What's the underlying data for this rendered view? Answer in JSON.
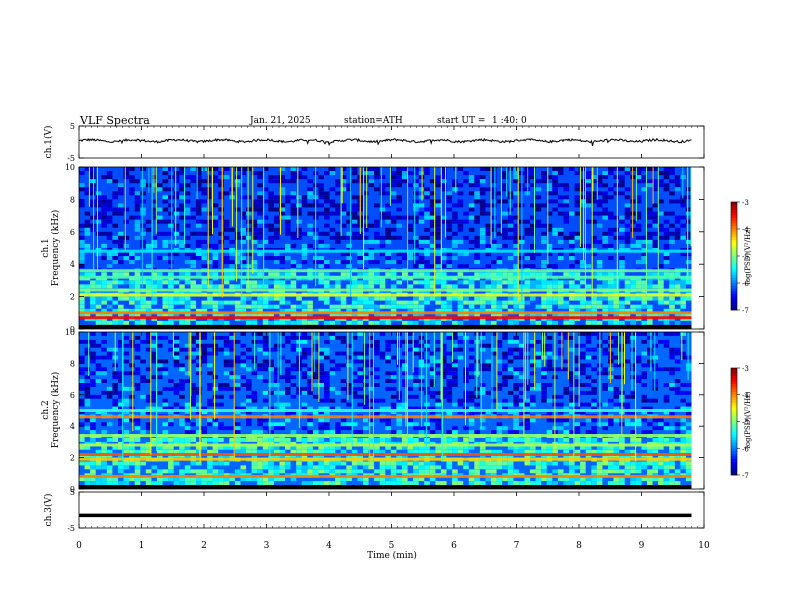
{
  "header": {
    "title": "VLF Spectra",
    "date": "Jan. 21, 2025",
    "station": "station=ATH",
    "start_label": "start UT =",
    "start_time": "1 :40: 0"
  },
  "colors": {
    "spectrum_background": "#0a3fc8",
    "trace": "#000000"
  },
  "chart_data": [
    {
      "type": "line",
      "panel": "ch1",
      "ylabel": "ch.1(V)",
      "ylim": [
        -5,
        5
      ],
      "yticks": [
        "5",
        "-5"
      ],
      "xlim": [
        0,
        10
      ],
      "x_end": 9.8,
      "baseline": 0.4,
      "description_of_signal": "noisy trace around baseline with small spikes"
    },
    {
      "type": "heatmap",
      "panel": "ch1-spectrogram",
      "ylabel_top": "ch.1",
      "ylabel": "Frequency (kHz)",
      "ylim": [
        0,
        10
      ],
      "yticks": [
        "0",
        "2",
        "4",
        "6",
        "8",
        "10"
      ],
      "xlim": [
        0,
        10
      ],
      "x_end": 9.8,
      "colorbar": {
        "label": "log(PSD)(V²/Hz)",
        "range": [
          -7,
          -3
        ],
        "ticks": [
          "-3",
          "-4",
          "-5",
          "-6",
          "-7"
        ]
      },
      "bands": [
        {
          "freq": 0.7,
          "level": -3.5
        },
        {
          "freq": 1.0,
          "level": -4.0
        },
        {
          "freq": 2.1,
          "level": -4.6
        },
        {
          "freq": 2.4,
          "level": -5.0
        },
        {
          "freq": 3.2,
          "level": -5.2
        },
        {
          "freq": 3.6,
          "level": -5.1
        },
        {
          "freq": 4.8,
          "level": -5.6
        }
      ]
    },
    {
      "type": "heatmap",
      "panel": "ch2-spectrogram",
      "ylabel_top": "ch.2",
      "ylabel": "Frequency (kHz)",
      "ylim": [
        0,
        10
      ],
      "yticks": [
        "0",
        "2",
        "4",
        "6",
        "8",
        "10"
      ],
      "xlim": [
        0,
        10
      ],
      "x_end": 9.8,
      "colorbar": {
        "label": "log(PSD)(V²/Hz)",
        "range": [
          -7,
          -3
        ],
        "ticks": [
          "-3",
          "-4",
          "-5",
          "-6",
          "-7"
        ]
      },
      "bands": [
        {
          "freq": 0.8,
          "level": -4.0
        },
        {
          "freq": 1.9,
          "level": -4.3
        },
        {
          "freq": 2.2,
          "level": -3.8
        },
        {
          "freq": 2.8,
          "level": -4.8
        },
        {
          "freq": 3.4,
          "level": -4.9
        },
        {
          "freq": 4.6,
          "level": -4.0
        },
        {
          "freq": 5.0,
          "level": -5.3
        }
      ]
    },
    {
      "type": "line",
      "panel": "ch3",
      "ylabel": "ch.3(V)",
      "ylim": [
        -5,
        5
      ],
      "yticks": [
        "5",
        "-5"
      ],
      "xlim": [
        0,
        10
      ],
      "x_end": 9.8,
      "baseline": -1.5,
      "xlabel": "Time (min)",
      "xticks": [
        "0",
        "1",
        "2",
        "3",
        "4",
        "5",
        "6",
        "7",
        "8",
        "9",
        "10"
      ]
    }
  ]
}
